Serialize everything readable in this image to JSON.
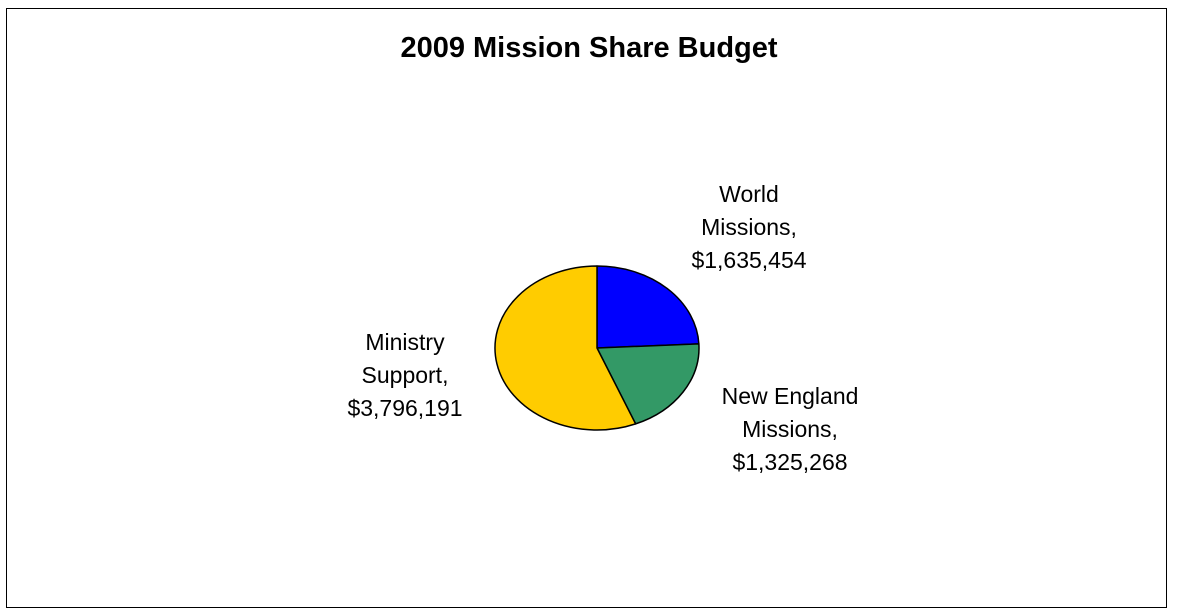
{
  "chart_data": {
    "type": "pie",
    "title": "2009 Mission Share Budget",
    "slices": [
      {
        "label_lines": [
          "World",
          "Missions,",
          "$1,635,454"
        ],
        "value": 1635454,
        "color": "#0000FF"
      },
      {
        "label_lines": [
          "New England",
          "Missions,",
          "$1,325,268"
        ],
        "value": 1325268,
        "color": "#339966"
      },
      {
        "label_lines": [
          "Ministry",
          "Support,",
          "$3,796,191"
        ],
        "value": 3796191,
        "color": "#FFCC00"
      }
    ],
    "legend": "none",
    "grid": false
  }
}
